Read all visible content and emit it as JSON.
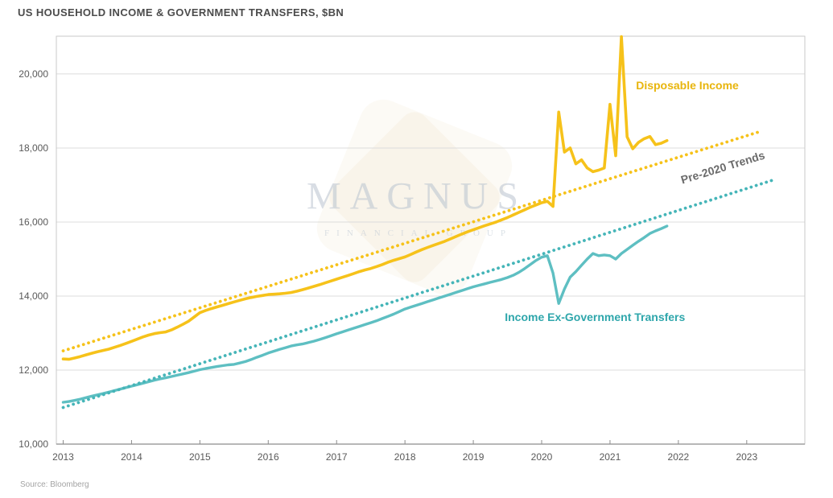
{
  "header": {
    "title": "US HOUSEHOLD INCOME & GOVERNMENT TRANSFERS, $BN"
  },
  "footer": {
    "source": "Source: Bloomberg"
  },
  "watermark": {
    "line1": "MAGNUS",
    "line2": "FINANCIAL GROUP"
  },
  "colors": {
    "gold_line": "#F6C21A",
    "teal_line": "#5EBFC2",
    "teal_trend": "#45B5B8",
    "gold_label": "#E8B50C",
    "teal_label": "#2EA6AB",
    "trend_label": "#6B6B6B",
    "grid": "#DCDCDC",
    "border": "#C9C9C9",
    "axis": "#8C8C8C",
    "title_text": "#4B4B4B"
  },
  "chart_data": {
    "type": "line",
    "title": "US HOUSEHOLD INCOME & GOVERNMENT TRANSFERS, $BN",
    "xlabel": "",
    "ylabel": "",
    "xlim": [
      2012.9,
      2023.85
    ],
    "ylim": [
      10000,
      21020
    ],
    "grid": "horizontal",
    "legend_position": "inline-annotations",
    "x_ticks": [
      "2013",
      "2014",
      "2015",
      "2016",
      "2017",
      "2018",
      "2019",
      "2020",
      "2021",
      "2022",
      "2023"
    ],
    "x_tick_values": [
      2013,
      2014,
      2015,
      2016,
      2017,
      2018,
      2019,
      2020,
      2021,
      2022,
      2023
    ],
    "y_ticks": [
      {
        "value": 10000,
        "label": "10,000"
      },
      {
        "value": 12000,
        "label": "12,000"
      },
      {
        "value": 14000,
        "label": "14,000"
      },
      {
        "value": 16000,
        "label": "16,000"
      },
      {
        "value": 18000,
        "label": "18,000"
      },
      {
        "value": 20000,
        "label": "20,000"
      }
    ],
    "series": [
      {
        "id": "disposable-income",
        "name": "Disposable Income",
        "style": "solid",
        "color": "#F6C21A",
        "width": 3.6,
        "x_start": 2013.0,
        "x_step": 0.08333,
        "frequency": "monthly (Jan 2013 - Nov 2021)",
        "values": [
          12300,
          12290,
          12325,
          12365,
          12410,
          12455,
          12495,
          12530,
          12565,
          12615,
          12665,
          12720,
          12775,
          12835,
          12895,
          12945,
          12985,
          13010,
          13030,
          13085,
          13155,
          13235,
          13320,
          13435,
          13550,
          13610,
          13660,
          13705,
          13750,
          13795,
          13840,
          13885,
          13925,
          13960,
          13990,
          14015,
          14040,
          14050,
          14060,
          14075,
          14095,
          14130,
          14170,
          14215,
          14260,
          14305,
          14355,
          14405,
          14455,
          14505,
          14555,
          14605,
          14660,
          14705,
          14745,
          14795,
          14850,
          14910,
          14965,
          15010,
          15055,
          15120,
          15190,
          15255,
          15315,
          15370,
          15425,
          15480,
          15545,
          15610,
          15675,
          15735,
          15790,
          15845,
          15900,
          15950,
          16000,
          16060,
          16120,
          16190,
          16260,
          16330,
          16400,
          16460,
          16520,
          16560,
          16420,
          18970,
          17890,
          18000,
          17570,
          17680,
          17460,
          17360,
          17400,
          17460,
          19180,
          17790,
          21010,
          18300,
          17980,
          18150,
          18250,
          18310,
          18090,
          18130,
          18200
        ]
      },
      {
        "id": "income-ex-government-transfers",
        "name": "Income Ex-Government Transfers",
        "style": "solid",
        "color": "#5EBFC2",
        "width": 3.4,
        "x_start": 2013.0,
        "x_step": 0.08333,
        "frequency": "monthly (Jan 2013 - Nov 2021)",
        "values": [
          11130,
          11150,
          11180,
          11215,
          11255,
          11295,
          11330,
          11365,
          11405,
          11445,
          11485,
          11525,
          11565,
          11605,
          11645,
          11685,
          11725,
          11760,
          11790,
          11825,
          11860,
          11895,
          11930,
          11970,
          12010,
          12040,
          12070,
          12095,
          12120,
          12140,
          12155,
          12190,
          12230,
          12285,
          12345,
          12400,
          12460,
          12510,
          12560,
          12605,
          12650,
          12680,
          12705,
          12740,
          12780,
          12825,
          12875,
          12925,
          12980,
          13030,
          13080,
          13130,
          13180,
          13230,
          13280,
          13330,
          13390,
          13450,
          13510,
          13580,
          13650,
          13700,
          13750,
          13800,
          13850,
          13900,
          13950,
          14000,
          14050,
          14100,
          14150,
          14200,
          14250,
          14290,
          14330,
          14370,
          14410,
          14450,
          14500,
          14560,
          14640,
          14740,
          14850,
          14960,
          15050,
          15090,
          14620,
          13800,
          14190,
          14510,
          14660,
          14830,
          15000,
          15150,
          15090,
          15110,
          15090,
          15000,
          15150,
          15260,
          15370,
          15480,
          15580,
          15690,
          15760,
          15820,
          15890
        ]
      },
      {
        "id": "disposable-income-pre-2020-trend",
        "name": "Disposable Income Pre-2020 Trend",
        "style": "dotted",
        "color": "#F6C21A",
        "width": 3.8,
        "x": [
          2013.0,
          2023.22
        ],
        "values": [
          12520,
          18460
        ]
      },
      {
        "id": "income-ex-transfers-pre-2020-trend",
        "name": "Income Ex-Government Transfers Pre-2020 Trend",
        "style": "dotted",
        "color": "#45B5B8",
        "width": 3.8,
        "x": [
          2013.0,
          2023.43
        ],
        "values": [
          10990,
          17160
        ]
      }
    ],
    "annotations": {
      "disposable": {
        "text": "Disposable Income",
        "x": 2021.38,
        "y": 19690,
        "align": "left",
        "rotation": 0,
        "color": "#E8B50C"
      },
      "income_ex": {
        "text": "Income Ex-Government Transfers",
        "x": 2020.78,
        "y": 13430,
        "align": "center",
        "rotation": 0,
        "color": "#2EA6AB"
      },
      "trends": {
        "text": "Pre-2020 Trends",
        "x": 2022.65,
        "y": 17480,
        "align": "center",
        "rotation": -17,
        "color": "#6B6B6B"
      }
    }
  }
}
